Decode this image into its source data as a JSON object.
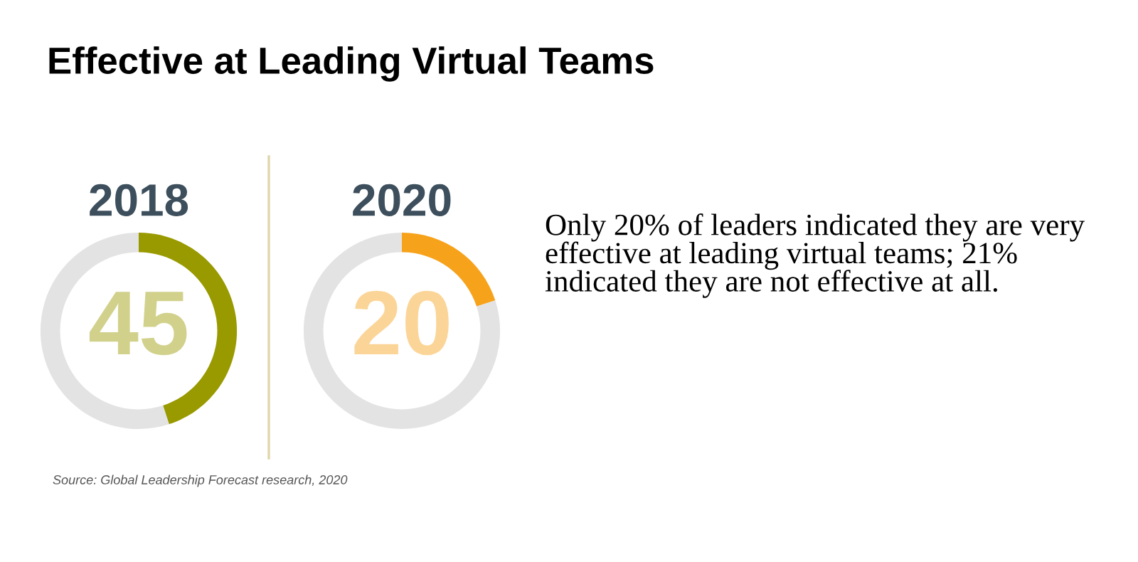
{
  "chart_data": [
    {
      "type": "donut",
      "title": "2018",
      "categories": [
        null,
        null
      ],
      "values": [
        45,
        55
      ],
      "colors": [
        "#999900",
        "#e3e3e3"
      ],
      "annotations": [
        "45"
      ]
    },
    {
      "type": "donut",
      "title": "2020",
      "categories": [
        null,
        null
      ],
      "values": [
        20,
        80
      ],
      "colors": [
        "#f7a21b",
        "#e3e3e3"
      ],
      "annotations": [
        "20"
      ]
    },
    {
      "type": "other",
      "title": "Effective at Leading Virtual Teams",
      "annotations": [
        "Only 20% of leaders indicated they are very effective at leading virtual teams; 21% indicated they are not effective at all.",
        "Source: Global Leadership Forecast research, 2020"
      ]
    }
  ]
}
